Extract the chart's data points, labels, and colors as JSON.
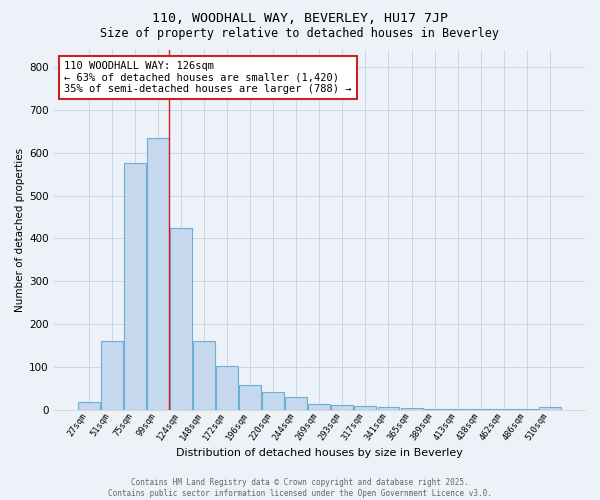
{
  "title1": "110, WOODHALL WAY, BEVERLEY, HU17 7JP",
  "title2": "Size of property relative to detached houses in Beverley",
  "xlabel": "Distribution of detached houses by size in Beverley",
  "ylabel": "Number of detached properties",
  "bin_labels": [
    "27sqm",
    "51sqm",
    "75sqm",
    "99sqm",
    "124sqm",
    "148sqm",
    "172sqm",
    "196sqm",
    "220sqm",
    "244sqm",
    "269sqm",
    "293sqm",
    "317sqm",
    "341sqm",
    "365sqm",
    "389sqm",
    "413sqm",
    "438sqm",
    "462sqm",
    "486sqm",
    "510sqm"
  ],
  "bar_heights": [
    18,
    160,
    575,
    635,
    425,
    160,
    102,
    57,
    42,
    30,
    14,
    10,
    8,
    5,
    3,
    2,
    2,
    1,
    1,
    1,
    5
  ],
  "bar_color": "#c5d8ee",
  "bar_edge_color": "#6baed6",
  "grid_color": "#c8d8e8",
  "ref_line_x": 3.5,
  "ref_line_color": "#cc2222",
  "annotation_text": "110 WOODHALL WAY: 126sqm\n← 63% of detached houses are smaller (1,420)\n35% of semi-detached houses are larger (788) →",
  "annotation_box_color": "#ffffff",
  "annotation_box_edge": "#cc2222",
  "ylim": [
    0,
    840
  ],
  "yticks": [
    0,
    100,
    200,
    300,
    400,
    500,
    600,
    700,
    800
  ],
  "footnote": "Contains HM Land Registry data © Crown copyright and database right 2025.\nContains public sector information licensed under the Open Government Licence v3.0.",
  "bg_color": "#edf2f8"
}
